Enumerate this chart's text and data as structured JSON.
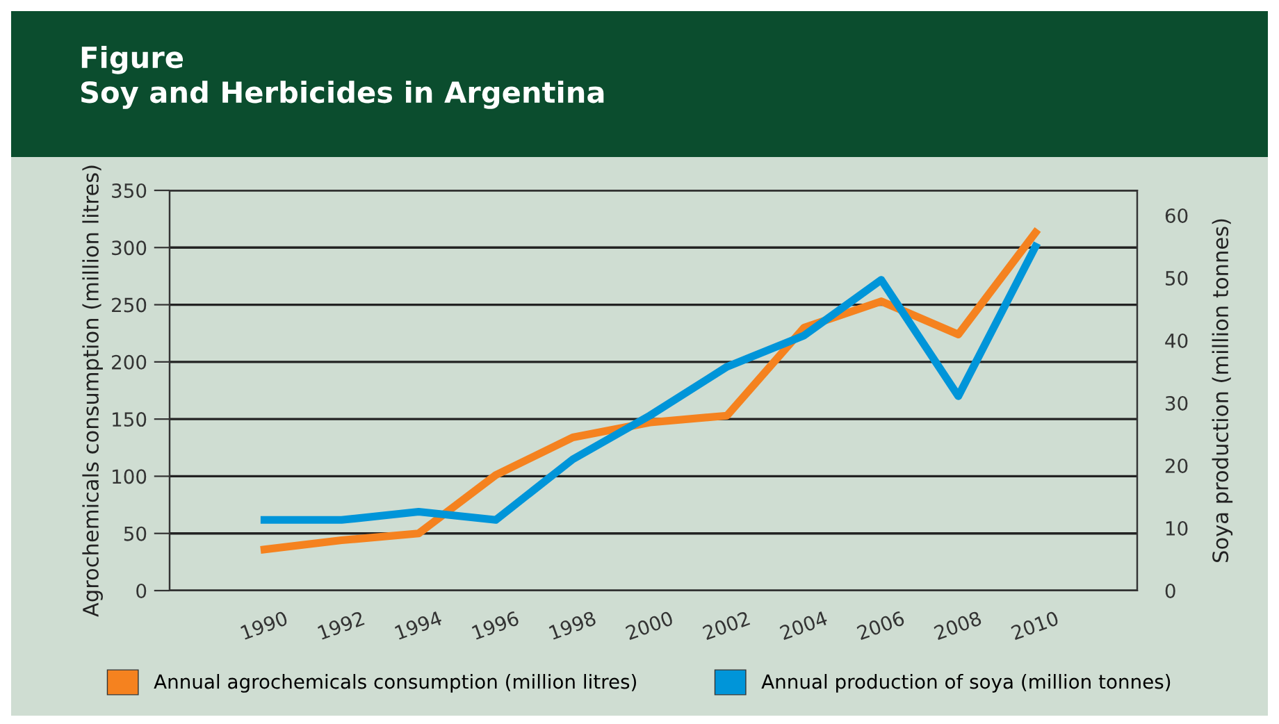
{
  "chart_data": {
    "type": "line",
    "title": "Figure\nSoy and Herbicides in Argentina",
    "ylabel": "Agrochemicals consumption (million litres)",
    "y2label": "Soya production (million tonnes)",
    "categories": [
      "1990",
      "1992",
      "1994",
      "1996",
      "1998",
      "2000",
      "2002",
      "2004",
      "2006",
      "2008",
      "2010"
    ],
    "series": [
      {
        "name": "Annual agrochemicals consumption (million litres)",
        "color": "#f5821f",
        "values": [
          36,
          44,
          50,
          101,
          134,
          147,
          153,
          230,
          253,
          224,
          313
        ]
      },
      {
        "name": "Annual production of soya (million tonnes)",
        "color": "#0095d9",
        "axis": "y2",
        "values": [
          11.3,
          11.3,
          12.6,
          11.3,
          21,
          28,
          35.8,
          40.8,
          49.7,
          31.1,
          55
        ]
      }
    ],
    "ylim": [
      0,
      350
    ],
    "yticks": [
      0,
      50,
      100,
      150,
      200,
      250,
      300,
      350
    ],
    "y2lim": [
      0,
      64
    ],
    "y2ticks": [
      0,
      10,
      20,
      30,
      40,
      50,
      60
    ],
    "grid": "y",
    "legend": "bottom",
    "marker": "none",
    "line_style": "solid"
  }
}
